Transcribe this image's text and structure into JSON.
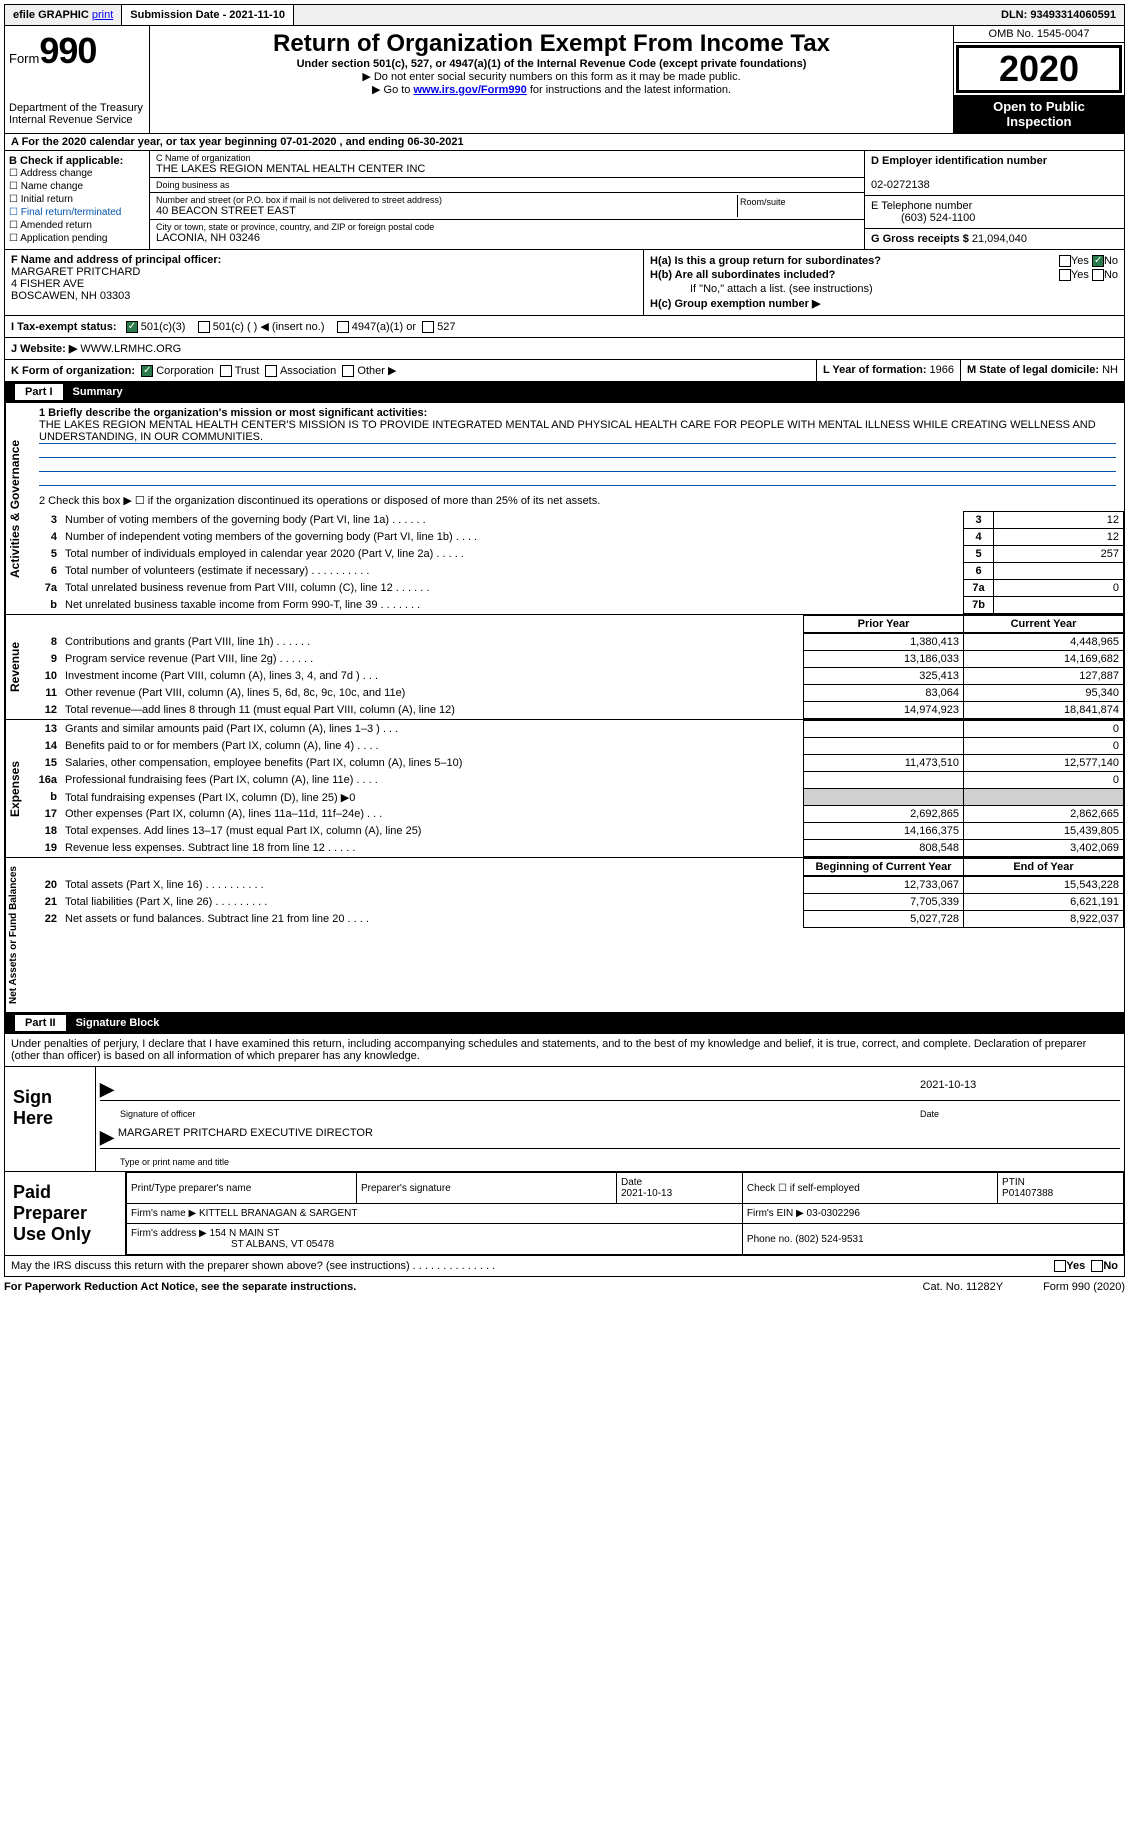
{
  "topbar": {
    "efile": "efile GRAPHIC",
    "print": "print",
    "subdate_label": "Submission Date - ",
    "subdate": "2021-11-10",
    "dln_label": "DLN: ",
    "dln": "93493314060591"
  },
  "header": {
    "form_label": "Form",
    "form_num": "990",
    "dept": "Department of the Treasury",
    "irs": "Internal Revenue Service",
    "title": "Return of Organization Exempt From Income Tax",
    "subtitle": "Under section 501(c), 527, or 4947(a)(1) of the Internal Revenue Code (except private foundations)",
    "instr1": "▶ Do not enter social security numbers on this form as it may be made public.",
    "instr2_pre": "▶ Go to ",
    "instr2_link": "www.irs.gov/Form990",
    "instr2_post": " for instructions and the latest information.",
    "omb": "OMB No. 1545-0047",
    "year": "2020",
    "open1": "Open to Public",
    "open2": "Inspection"
  },
  "row_a": "A For the 2020 calendar year, or tax year beginning 07-01-2020     , and ending 06-30-2021",
  "block_b": {
    "title": "B Check if applicable:",
    "items": [
      "Address change",
      "Name change",
      "Initial return",
      "Final return/terminated",
      "Amended return",
      "Application pending"
    ]
  },
  "block_c": {
    "name_label": "C Name of organization",
    "name": "THE LAKES REGION MENTAL HEALTH CENTER INC",
    "dba_label": "Doing business as",
    "dba": "",
    "addr_label": "Number and street (or P.O. box if mail is not delivered to street address)",
    "room_label": "Room/suite",
    "addr": "40 BEACON STREET EAST",
    "city_label": "City or town, state or province, country, and ZIP or foreign postal code",
    "city": "LACONIA, NH  03246"
  },
  "block_d": {
    "ein_label": "D Employer identification number",
    "ein": "02-0272138",
    "tel_label": "E Telephone number",
    "tel": "(603) 524-1100",
    "gross_label": "G Gross receipts $ ",
    "gross": "21,094,040"
  },
  "block_f": {
    "label": "F Name and address of principal officer:",
    "name": "MARGARET PRITCHARD",
    "addr1": "4 FISHER AVE",
    "addr2": "BOSCAWEN, NH  03303"
  },
  "block_h": {
    "ha": "H(a)  Is this a group return for subordinates?",
    "hb": "H(b)  Are all subordinates included?",
    "hb_note": "If \"No,\" attach a list. (see instructions)",
    "hc": "H(c)  Group exemption number ▶",
    "yes": "Yes",
    "no": "No"
  },
  "row_i": {
    "label": "I    Tax-exempt status:",
    "o1": "501(c)(3)",
    "o2": "501(c) (   ) ◀ (insert no.)",
    "o3": "4947(a)(1) or",
    "o4": "527"
  },
  "row_j": {
    "label": "J   Website: ▶  ",
    "val": "WWW.LRMHC.ORG"
  },
  "row_k": {
    "k": "K Form of organization:",
    "corp": "Corporation",
    "trust": "Trust",
    "assoc": "Association",
    "other": "Other ▶",
    "l": "L Year of formation: ",
    "l_val": "1966",
    "m": "M State of legal domicile: ",
    "m_val": "NH"
  },
  "part1": {
    "label": "Part I",
    "title": "Summary",
    "side_gov": "Activities & Governance",
    "side_rev": "Revenue",
    "side_exp": "Expenses",
    "side_net": "Net Assets or Fund Balances",
    "q1": "1  Briefly describe the organization's mission or most significant activities:",
    "mission": "THE LAKES REGION MENTAL HEALTH CENTER'S MISSION IS TO PROVIDE INTEGRATED MENTAL AND PHYSICAL HEALTH CARE FOR PEOPLE WITH MENTAL ILLNESS WHILE CREATING WELLNESS AND UNDERSTANDING, IN OUR COMMUNITIES.",
    "q2": "2   Check this box ▶ ☐  if the organization discontinued its operations or disposed of more than 25% of its net assets.",
    "lines_gov": [
      {
        "n": "3",
        "t": "Number of voting members of the governing body (Part VI, line 1a)   .     .     .     .     .     .",
        "ln": "3",
        "v": "12"
      },
      {
        "n": "4",
        "t": "Number of independent voting members of the governing body (Part VI, line 1b)   .     .     .     .",
        "ln": "4",
        "v": "12"
      },
      {
        "n": "5",
        "t": "Total number of individuals employed in calendar year 2020 (Part V, line 2a)   .     .     .     .     .",
        "ln": "5",
        "v": "257"
      },
      {
        "n": "6",
        "t": "Total number of volunteers (estimate if necessary)   .     .     .     .     .     .     .     .     .     .",
        "ln": "6",
        "v": ""
      },
      {
        "n": "7a",
        "t": "Total unrelated business revenue from Part VIII, column (C), line 12   .     .     .     .     .     .",
        "ln": "7a",
        "v": "0"
      },
      {
        "n": "b",
        "t": "Net unrelated business taxable income from Form 990-T, line 39   .     .     .     .     .     .     .",
        "ln": "7b",
        "v": ""
      }
    ],
    "col_prior": "Prior Year",
    "col_curr": "Current Year",
    "lines_rev": [
      {
        "n": "8",
        "t": "Contributions and grants (Part VIII, line 1h)   .     .     .     .     .     .",
        "p": "1,380,413",
        "c": "4,448,965"
      },
      {
        "n": "9",
        "t": "Program service revenue (Part VIII, line 2g)   .     .     .     .     .     .",
        "p": "13,186,033",
        "c": "14,169,682"
      },
      {
        "n": "10",
        "t": "Investment income (Part VIII, column (A), lines 3, 4, and 7d )   .     .     .",
        "p": "325,413",
        "c": "127,887"
      },
      {
        "n": "11",
        "t": "Other revenue (Part VIII, column (A), lines 5, 6d, 8c, 9c, 10c, and 11e)",
        "p": "83,064",
        "c": "95,340"
      },
      {
        "n": "12",
        "t": "Total revenue—add lines 8 through 11 (must equal Part VIII, column (A), line 12)",
        "p": "14,974,923",
        "c": "18,841,874"
      }
    ],
    "lines_exp": [
      {
        "n": "13",
        "t": "Grants and similar amounts paid (Part IX, column (A), lines 1–3 )   .     .     .",
        "p": "",
        "c": "0"
      },
      {
        "n": "14",
        "t": "Benefits paid to or for members (Part IX, column (A), line 4)   .     .     .     .",
        "p": "",
        "c": "0"
      },
      {
        "n": "15",
        "t": "Salaries, other compensation, employee benefits (Part IX, column (A), lines 5–10)",
        "p": "11,473,510",
        "c": "12,577,140"
      },
      {
        "n": "16a",
        "t": "Professional fundraising fees (Part IX, column (A), line 11e)   .     .     .     .",
        "p": "",
        "c": "0"
      },
      {
        "n": "b",
        "t": "Total fundraising expenses (Part IX, column (D), line 25) ▶0",
        "p": "GRAY",
        "c": "GRAY"
      },
      {
        "n": "17",
        "t": "Other expenses (Part IX, column (A), lines 11a–11d, 11f–24e)   .     .     .",
        "p": "2,692,865",
        "c": "2,862,665"
      },
      {
        "n": "18",
        "t": "Total expenses. Add lines 13–17 (must equal Part IX, column (A), line 25)",
        "p": "14,166,375",
        "c": "15,439,805"
      },
      {
        "n": "19",
        "t": "Revenue less expenses. Subtract line 18 from line 12   .     .     .     .     .",
        "p": "808,548",
        "c": "3,402,069"
      }
    ],
    "col_begin": "Beginning of Current Year",
    "col_end": "End of Year",
    "lines_net": [
      {
        "n": "20",
        "t": "Total assets (Part X, line 16)   .     .     .     .     .     .     .     .     .     .",
        "p": "12,733,067",
        "c": "15,543,228"
      },
      {
        "n": "21",
        "t": "Total liabilities (Part X, line 26)   .     .     .     .     .     .     .     .     .",
        "p": "7,705,339",
        "c": "6,621,191"
      },
      {
        "n": "22",
        "t": "Net assets or fund balances. Subtract line 21 from line 20   .     .     .     .",
        "p": "5,027,728",
        "c": "8,922,037"
      }
    ]
  },
  "part2": {
    "label": "Part II",
    "title": "Signature Block",
    "declaration": "Under penalties of perjury, I declare that I have examined this return, including accompanying schedules and statements, and to the best of my knowledge and belief, it is true, correct, and complete. Declaration of preparer (other than officer) is based on all information of which preparer has any knowledge."
  },
  "sign": {
    "label1": "Sign",
    "label2": "Here",
    "sig_date": "2021-10-13",
    "sig_cap": "Signature of officer",
    "date_cap": "Date",
    "name": "MARGARET PRITCHARD  EXECUTIVE DIRECTOR",
    "name_cap": "Type or print name and title"
  },
  "prep": {
    "label1": "Paid",
    "label2": "Preparer",
    "label3": "Use Only",
    "h1": "Print/Type preparer's name",
    "h2": "Preparer's signature",
    "h3": "Date",
    "h3v": "2021-10-13",
    "h4": "Check ☐ if self-employed",
    "h5": "PTIN",
    "h5v": "P01407388",
    "firm_label": "Firm's name      ▶ ",
    "firm": "KITTELL BRANAGAN & SARGENT",
    "ein_label": "Firm's EIN ▶ ",
    "ein": "03-0302296",
    "addr_label": "Firm's address ▶ ",
    "addr1": "154 N MAIN ST",
    "addr2": "ST ALBANS, VT  05478",
    "phone_label": "Phone no. ",
    "phone": "(802) 524-9531"
  },
  "irs_row": "May the IRS discuss this return with the preparer shown above? (see instructions)   .     .     .     .     .     .     .     .     .     .     .     .     .     .",
  "irs_yes": "Yes",
  "irs_no": "No",
  "footer": {
    "notice": "For Paperwork Reduction Act Notice, see the separate instructions.",
    "cat": "Cat. No. 11282Y",
    "form": "Form 990 (2020)"
  }
}
